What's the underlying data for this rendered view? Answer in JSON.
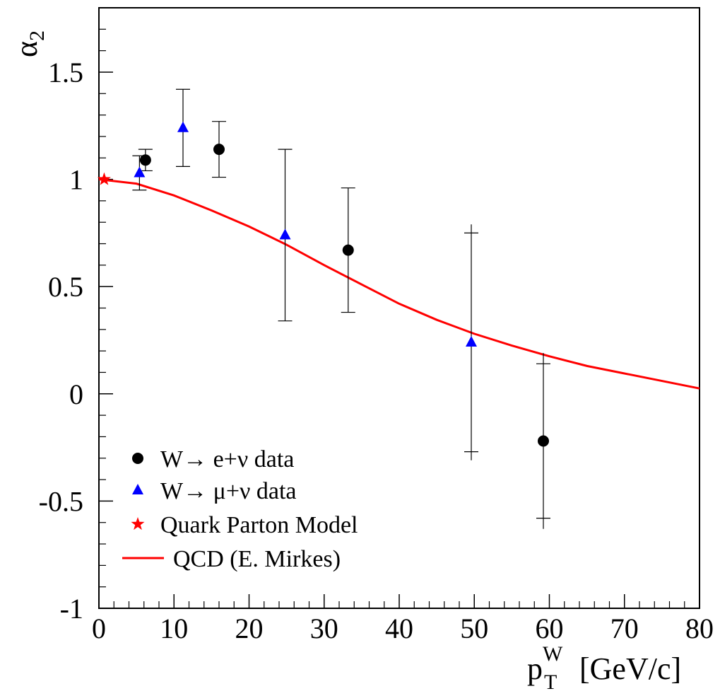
{
  "chart_data": {
    "type": "scatter",
    "title": "",
    "ylabel": "α",
    "ylabel_sub": "2",
    "xlabel_main": "p",
    "xlabel_sub": "T",
    "xlabel_sup": "W",
    "xlabel_unit": "[GeV/c]",
    "xlim": [
      0,
      80
    ],
    "ylim": [
      -1,
      1.8
    ],
    "grid": false,
    "legend_placement": "bottom-left",
    "x_ticks": [
      0,
      10,
      20,
      30,
      40,
      50,
      60,
      70,
      80
    ],
    "x_tick_labels": [
      "0",
      "10",
      "20",
      "30",
      "40",
      "50",
      "60",
      "70",
      "80"
    ],
    "y_ticks": [
      -1,
      -0.5,
      0,
      0.5,
      1,
      1.5
    ],
    "y_tick_labels": [
      "-1",
      "-0.5",
      "0",
      "0.5",
      "1",
      "1.5"
    ],
    "series": [
      {
        "name": "W→ e+ν data",
        "marker": "circle",
        "color": "#000000",
        "points": [
          {
            "x": 6.2,
            "y": 1.09,
            "ylow": 1.04,
            "yhigh": 1.14
          },
          {
            "x": 16.0,
            "y": 1.14,
            "ylow": 1.01,
            "yhigh": 1.27
          },
          {
            "x": 33.2,
            "y": 0.67,
            "ylow": 0.38,
            "yhigh": 0.96
          },
          {
            "x": 59.2,
            "y": -0.22,
            "ylow": -0.58,
            "yhigh": 0.14,
            "ylow_outer": -0.63,
            "yhigh_outer": 0.19
          }
        ]
      },
      {
        "name": "W→ μ+ν data",
        "marker": "triangle",
        "color": "#0000ff",
        "points": [
          {
            "x": 5.4,
            "y": 1.03,
            "ylow": 0.95,
            "yhigh": 1.11
          },
          {
            "x": 11.2,
            "y": 1.24,
            "ylow": 1.06,
            "yhigh": 1.42
          },
          {
            "x": 24.8,
            "y": 0.74,
            "ylow": 0.34,
            "yhigh": 1.14
          },
          {
            "x": 49.6,
            "y": 0.24,
            "ylow": -0.27,
            "yhigh": 0.75,
            "ylow_outer": -0.31,
            "yhigh_outer": 0.79
          }
        ]
      },
      {
        "name": "Quark Parton Model",
        "marker": "star",
        "color": "#ff0000",
        "points": [
          {
            "x": 0.7,
            "y": 1.0
          }
        ]
      },
      {
        "name": "QCD (E. Mirkes)",
        "marker": "line",
        "color": "#ff0000",
        "x": [
          0,
          5,
          10,
          15,
          20,
          25,
          30,
          35,
          40,
          45,
          50,
          55,
          60,
          65,
          70,
          75,
          80
        ],
        "y": [
          1.0,
          0.98,
          0.925,
          0.855,
          0.78,
          0.695,
          0.6,
          0.51,
          0.42,
          0.345,
          0.28,
          0.225,
          0.175,
          0.13,
          0.095,
          0.06,
          0.025
        ]
      }
    ]
  }
}
